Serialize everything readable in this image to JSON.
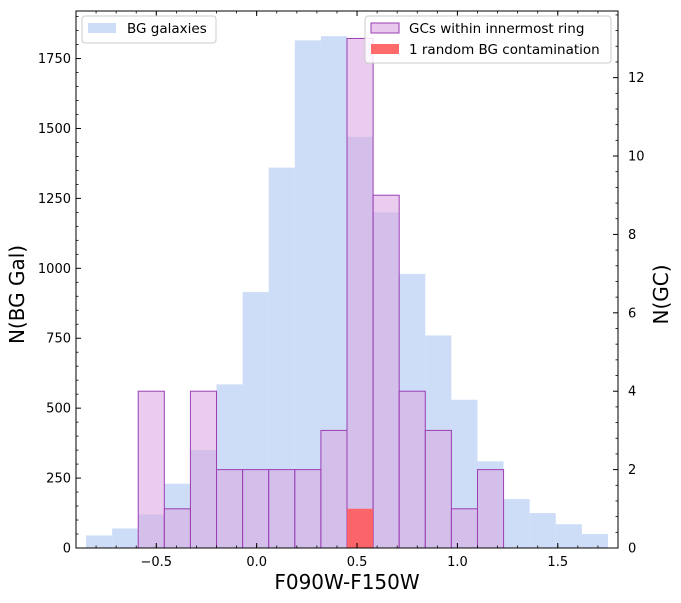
{
  "chart_data": {
    "type": "histogram",
    "xlabel": "F090W-F150W",
    "xlim": [
      -0.9,
      1.8
    ],
    "x_ticks": [
      -0.5,
      0.0,
      0.5,
      1.0,
      1.5
    ],
    "x_tick_labels": [
      "−0.5",
      "0.0",
      "0.5",
      "1.0",
      "1.5"
    ],
    "left_axis": {
      "label": "N(BG Gal)",
      "ylim": [
        0,
        1920
      ],
      "ticks": [
        0,
        250,
        500,
        750,
        1000,
        1250,
        1500,
        1750
      ],
      "tick_labels": [
        "0",
        "250",
        "500",
        "750",
        "1000",
        "1250",
        "1500",
        "1750"
      ]
    },
    "right_axis": {
      "label": "N(GC)",
      "ylim": [
        0,
        13.7
      ],
      "ticks": [
        0,
        2,
        4,
        6,
        8,
        10,
        12
      ],
      "tick_labels": [
        "0",
        "2",
        "4",
        "6",
        "8",
        "10",
        "12"
      ]
    },
    "bg_series": {
      "name": "BG galaxies",
      "axis": "left",
      "color": "#aec7f2",
      "bins": [
        {
          "x0": -0.85,
          "x1": -0.72,
          "value": 45
        },
        {
          "x0": -0.72,
          "x1": -0.59,
          "value": 70
        },
        {
          "x0": -0.59,
          "x1": -0.46,
          "value": 120
        },
        {
          "x0": -0.46,
          "x1": -0.33,
          "value": 230
        },
        {
          "x0": -0.33,
          "x1": -0.2,
          "value": 350
        },
        {
          "x0": -0.2,
          "x1": -0.07,
          "value": 585
        },
        {
          "x0": -0.07,
          "x1": 0.06,
          "value": 915
        },
        {
          "x0": 0.06,
          "x1": 0.19,
          "value": 1360
        },
        {
          "x0": 0.19,
          "x1": 0.32,
          "value": 1815
        },
        {
          "x0": 0.32,
          "x1": 0.45,
          "value": 1830
        },
        {
          "x0": 0.45,
          "x1": 0.58,
          "value": 1470
        },
        {
          "x0": 0.58,
          "x1": 0.71,
          "value": 1200
        },
        {
          "x0": 0.71,
          "x1": 0.84,
          "value": 980
        },
        {
          "x0": 0.84,
          "x1": 0.97,
          "value": 760
        },
        {
          "x0": 0.97,
          "x1": 1.1,
          "value": 530
        },
        {
          "x0": 1.1,
          "x1": 1.23,
          "value": 310
        },
        {
          "x0": 1.23,
          "x1": 1.36,
          "value": 175
        },
        {
          "x0": 1.36,
          "x1": 1.49,
          "value": 125
        },
        {
          "x0": 1.49,
          "x1": 1.62,
          "value": 85
        },
        {
          "x0": 1.62,
          "x1": 1.75,
          "value": 50
        }
      ]
    },
    "gc_series": {
      "name": "GCs within innermost ring",
      "axis": "right",
      "color": "#d8a4e0",
      "edge_color": "#9b3fb5",
      "bins": [
        {
          "x0": -0.59,
          "x1": -0.46,
          "value": 4
        },
        {
          "x0": -0.46,
          "x1": -0.33,
          "value": 1
        },
        {
          "x0": -0.33,
          "x1": -0.2,
          "value": 4
        },
        {
          "x0": -0.2,
          "x1": -0.07,
          "value": 2
        },
        {
          "x0": -0.07,
          "x1": 0.06,
          "value": 2
        },
        {
          "x0": 0.06,
          "x1": 0.19,
          "value": 2
        },
        {
          "x0": 0.19,
          "x1": 0.32,
          "value": 2
        },
        {
          "x0": 0.32,
          "x1": 0.45,
          "value": 3
        },
        {
          "x0": 0.45,
          "x1": 0.58,
          "value": 13
        },
        {
          "x0": 0.58,
          "x1": 0.71,
          "value": 9
        },
        {
          "x0": 0.71,
          "x1": 0.84,
          "value": 4
        },
        {
          "x0": 0.84,
          "x1": 0.97,
          "value": 3
        },
        {
          "x0": 0.97,
          "x1": 1.1,
          "value": 1
        },
        {
          "x0": 1.1,
          "x1": 1.23,
          "value": 2
        }
      ]
    },
    "contamination_series": {
      "name": "1 random BG contamination",
      "axis": "right",
      "color": "#ff5b5b",
      "bins": [
        {
          "x0": 0.45,
          "x1": 0.58,
          "value": 1
        }
      ]
    },
    "legend_left": {
      "position": "upper-left",
      "entries": [
        "BG galaxies"
      ]
    },
    "legend_right": {
      "position": "upper-right",
      "entries": [
        "GCs within innermost ring",
        "1 random BG contamination"
      ]
    }
  }
}
